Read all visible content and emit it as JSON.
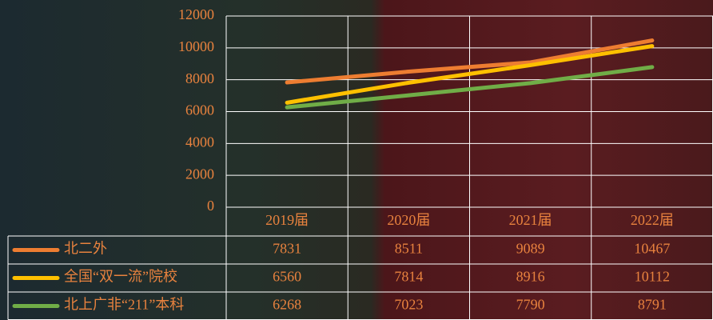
{
  "chart_data": {
    "type": "line",
    "categories": [
      "2019届",
      "2020届",
      "2021届",
      "2022届"
    ],
    "series": [
      {
        "name": "北二外",
        "color": "#ed7d31",
        "values": [
          7831,
          8511,
          9089,
          10467
        ]
      },
      {
        "name": "全国“双一流”院校",
        "color": "#ffc000",
        "values": [
          6560,
          7814,
          8916,
          10112
        ]
      },
      {
        "name": "北上广非“211”本科",
        "color": "#70ad47",
        "values": [
          6268,
          7023,
          7790,
          8791
        ]
      }
    ],
    "ylim": [
      0,
      12000
    ],
    "yticks": [
      0,
      2000,
      4000,
      6000,
      8000,
      10000,
      12000
    ],
    "grid": true
  }
}
